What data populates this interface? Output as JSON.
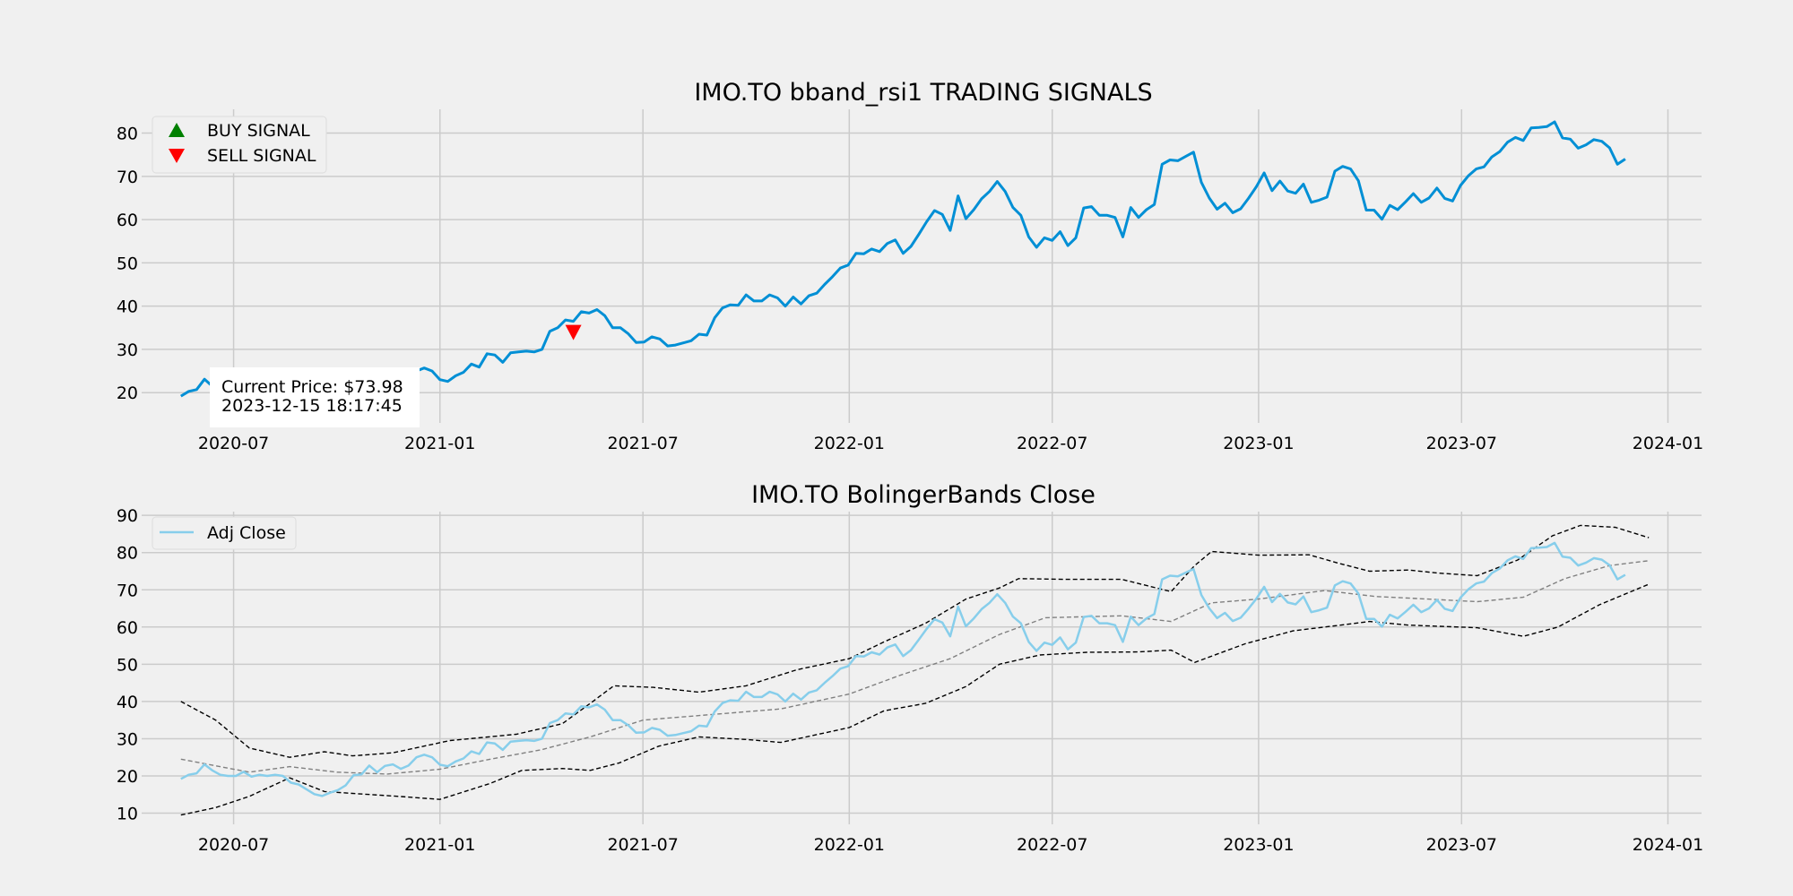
{
  "colors": {
    "background": "#f0f0f0",
    "grid": "#cbcbcb",
    "price_line": "#008fd5",
    "adj_close": "#87ceeb",
    "band_upper_lower": "#000000",
    "band_middle": "#808080",
    "buy": "#008000",
    "sell": "#ff0000"
  },
  "chart_data": [
    {
      "type": "line",
      "title": "IMO.TO bband_rsi1 TRADING SIGNALS",
      "xlabel": "",
      "ylabel": "",
      "x_ticks": [
        "2020-07",
        "2021-01",
        "2021-07",
        "2022-01",
        "2022-07",
        "2023-01",
        "2023-07",
        "2024-01"
      ],
      "y_ticks": [
        20,
        30,
        40,
        50,
        60,
        70,
        80
      ],
      "ylim": [
        13,
        85.5
      ],
      "xlim": [
        "2020-04-10",
        "2024-01-31"
      ],
      "grid": true,
      "legend_position": "upper left",
      "legend": [
        {
          "label": "BUY SIGNAL",
          "marker": "triangle-up",
          "color": "#008000"
        },
        {
          "label": "SELL SIGNAL",
          "marker": "triangle-down",
          "color": "#ff0000"
        }
      ],
      "series": [
        {
          "values": [
            19.2,
            20.3,
            20.7,
            23.1,
            21.5,
            20.3,
            20.0,
            20.0,
            21.1,
            19.8,
            20.3,
            20.0,
            20.3,
            20.0,
            18.2,
            17.7,
            16.4,
            15.1,
            14.6,
            15.5,
            16.2,
            17.5,
            20.2,
            20.4,
            22.8,
            21.0,
            22.7,
            23.1,
            21.9,
            22.8,
            25.0,
            25.7,
            25.0,
            23.0,
            22.6,
            23.9,
            24.7,
            26.6,
            25.9,
            29.0,
            28.7,
            27.0,
            29.2,
            29.4,
            29.6,
            29.4,
            30.0,
            34.2,
            35.0,
            36.8,
            36.5,
            38.7,
            38.4,
            39.2,
            37.8,
            35.0,
            35.0,
            33.6,
            31.6,
            31.7,
            32.9,
            32.4,
            30.8,
            31.0,
            31.5,
            32.0,
            33.5,
            33.3,
            37.3,
            39.6,
            40.3,
            40.2,
            42.6,
            41.2,
            41.2,
            42.6,
            41.9,
            40.0,
            42.1,
            40.5,
            42.4,
            43.0,
            45.0,
            46.8,
            48.8,
            49.5,
            52.2,
            52.1,
            53.2,
            52.6,
            54.5,
            55.3,
            52.2,
            53.8,
            56.6,
            59.5,
            62.1,
            61.2,
            57.5,
            65.5,
            60.2,
            62.3,
            64.8,
            66.5,
            68.8,
            66.5,
            62.8,
            61.0,
            56.0,
            53.6,
            55.8,
            55.2,
            57.2,
            54.0,
            55.8,
            62.7,
            63.0,
            61.0,
            61.0,
            60.5,
            56.0,
            62.8,
            60.5,
            62.3,
            63.5,
            72.8,
            73.8,
            73.6,
            74.6,
            75.6,
            68.6,
            65.0,
            62.4,
            63.8,
            61.6,
            62.5,
            64.9,
            67.6,
            70.8,
            66.7,
            68.9,
            66.6,
            66.1,
            68.2,
            64.0,
            64.5,
            65.2,
            71.2,
            72.3,
            71.7,
            69.0,
            62.2,
            62.2,
            60.1,
            63.3,
            62.3,
            64.1,
            66.0,
            64.0,
            65.0,
            67.3,
            64.9,
            64.3,
            67.9,
            70.1,
            71.7,
            72.2,
            74.5,
            75.7,
            77.9,
            79.0,
            78.3,
            81.2,
            81.3,
            81.5,
            82.6,
            78.9,
            78.6,
            76.5,
            77.3,
            78.5,
            78.1,
            76.6,
            72.8,
            74.0
          ]
        }
      ],
      "x_range": [
        "2020-05-15",
        "2023-12-15"
      ],
      "x_spacing": "weekly",
      "sell_signals": [
        {
          "x": "2021-04-30",
          "y": 34.0
        }
      ],
      "buy_signals": [],
      "annotation": {
        "line1": "Current Price: $73.98",
        "line2": "2023-12-15 18:17:45"
      }
    },
    {
      "type": "line",
      "title": "IMO.TO BolingerBands Close",
      "xlabel": "",
      "ylabel": "",
      "x_ticks": [
        "2020-07",
        "2021-01",
        "2021-07",
        "2022-01",
        "2022-07",
        "2023-01",
        "2023-07",
        "2024-01"
      ],
      "y_ticks": [
        10,
        20,
        30,
        40,
        50,
        60,
        70,
        80,
        90
      ],
      "ylim": [
        7,
        91
      ],
      "xlim": [
        "2020-04-10",
        "2024-01-31"
      ],
      "grid": true,
      "legend_position": "upper left",
      "legend": [
        {
          "label": "Adj Close",
          "color": "#87ceeb"
        }
      ],
      "series": [
        {
          "name": "Adj Close",
          "values_ref": "same as chart 1 price series"
        },
        {
          "style": "dashed",
          "points": [
            [
              "2020-05-15",
              40.0
            ],
            [
              "2020-06-15",
              35.0
            ],
            [
              "2020-07-15",
              27.5
            ],
            [
              "2020-08-20",
              25.0
            ],
            [
              "2020-09-20",
              26.5
            ],
            [
              "2020-10-15",
              25.4
            ],
            [
              "2020-11-20",
              26.2
            ],
            [
              "2021-01-10",
              29.5
            ],
            [
              "2021-03-10",
              31.2
            ],
            [
              "2021-04-20",
              34.0
            ],
            [
              "2021-05-15",
              39.5
            ],
            [
              "2021-06-05",
              44.2
            ],
            [
              "2021-07-10",
              43.8
            ],
            [
              "2021-08-20",
              42.5
            ],
            [
              "2021-10-01",
              44.2
            ],
            [
              "2021-11-15",
              48.5
            ],
            [
              "2022-01-01",
              51.5
            ],
            [
              "2022-02-01",
              56.0
            ],
            [
              "2022-03-10",
              61.0
            ],
            [
              "2022-04-15",
              67.5
            ],
            [
              "2022-05-15",
              70.5
            ],
            [
              "2022-06-01",
              73.0
            ],
            [
              "2022-07-15",
              72.8
            ],
            [
              "2022-09-01",
              72.8
            ],
            [
              "2022-10-15",
              69.5
            ],
            [
              "2022-11-05",
              76.5
            ],
            [
              "2022-11-20",
              80.3
            ],
            [
              "2023-01-01",
              79.3
            ],
            [
              "2023-02-15",
              79.4
            ],
            [
              "2023-03-15",
              77.0
            ],
            [
              "2023-04-10",
              75.0
            ],
            [
              "2023-05-15",
              75.3
            ],
            [
              "2023-06-10",
              74.5
            ],
            [
              "2023-07-15",
              73.8
            ],
            [
              "2023-08-20",
              78.0
            ],
            [
              "2023-09-20",
              84.5
            ],
            [
              "2023-10-15",
              87.3
            ],
            [
              "2023-11-15",
              86.8
            ],
            [
              "2023-12-15",
              84.0
            ]
          ]
        },
        {
          "style": "dashed",
          "points": [
            [
              "2020-05-15",
              9.5
            ],
            [
              "2020-06-15",
              11.5
            ],
            [
              "2020-07-15",
              14.5
            ],
            [
              "2020-08-20",
              19.5
            ],
            [
              "2020-09-20",
              15.8
            ],
            [
              "2020-10-20",
              15.2
            ],
            [
              "2020-11-25",
              14.5
            ],
            [
              "2021-01-01",
              13.7
            ],
            [
              "2021-02-15",
              18.0
            ],
            [
              "2021-03-15",
              21.5
            ],
            [
              "2021-04-20",
              22.0
            ],
            [
              "2021-05-15",
              21.5
            ],
            [
              "2021-06-10",
              23.5
            ],
            [
              "2021-07-15",
              28.0
            ],
            [
              "2021-08-20",
              30.5
            ],
            [
              "2021-10-01",
              29.8
            ],
            [
              "2021-11-01",
              29.0
            ],
            [
              "2022-01-01",
              33.0
            ],
            [
              "2022-02-01",
              37.5
            ],
            [
              "2022-03-10",
              39.5
            ],
            [
              "2022-04-15",
              44.0
            ],
            [
              "2022-05-15",
              50.0
            ],
            [
              "2022-06-20",
              52.5
            ],
            [
              "2022-08-01",
              53.2
            ],
            [
              "2022-09-15",
              53.3
            ],
            [
              "2022-10-15",
              53.8
            ],
            [
              "2022-11-05",
              50.5
            ],
            [
              "2022-12-20",
              55.5
            ],
            [
              "2023-02-01",
              59.0
            ],
            [
              "2023-03-15",
              60.5
            ],
            [
              "2023-04-10",
              61.5
            ],
            [
              "2023-05-15",
              60.5
            ],
            [
              "2023-07-15",
              59.8
            ],
            [
              "2023-08-25",
              57.5
            ],
            [
              "2023-09-25",
              60.0
            ],
            [
              "2023-11-01",
              66.0
            ],
            [
              "2023-12-15",
              71.5
            ]
          ]
        },
        {
          "style": "dashed",
          "points": [
            [
              "2020-05-15",
              24.5
            ],
            [
              "2020-07-15",
              21.0
            ],
            [
              "2020-08-20",
              22.5
            ],
            [
              "2020-10-01",
              21.0
            ],
            [
              "2020-11-15",
              20.5
            ],
            [
              "2021-01-01",
              21.8
            ],
            [
              "2021-02-15",
              24.5
            ],
            [
              "2021-04-01",
              27.0
            ],
            [
              "2021-05-15",
              30.5
            ],
            [
              "2021-07-01",
              35.0
            ],
            [
              "2021-09-01",
              36.5
            ],
            [
              "2021-11-01",
              38.0
            ],
            [
              "2022-01-01",
              42.0
            ],
            [
              "2022-02-15",
              47.0
            ],
            [
              "2022-04-01",
              51.5
            ],
            [
              "2022-05-15",
              58.0
            ],
            [
              "2022-06-25",
              62.5
            ],
            [
              "2022-09-01",
              63.0
            ],
            [
              "2022-10-15",
              61.5
            ],
            [
              "2022-11-20",
              66.5
            ],
            [
              "2023-01-01",
              67.5
            ],
            [
              "2023-03-01",
              69.8
            ],
            [
              "2023-04-15",
              68.2
            ],
            [
              "2023-06-01",
              67.5
            ],
            [
              "2023-07-15",
              66.8
            ],
            [
              "2023-08-25",
              68.0
            ],
            [
              "2023-10-01",
              73.0
            ],
            [
              "2023-11-10",
              76.5
            ],
            [
              "2023-12-15",
              77.8
            ]
          ]
        }
      ]
    }
  ]
}
